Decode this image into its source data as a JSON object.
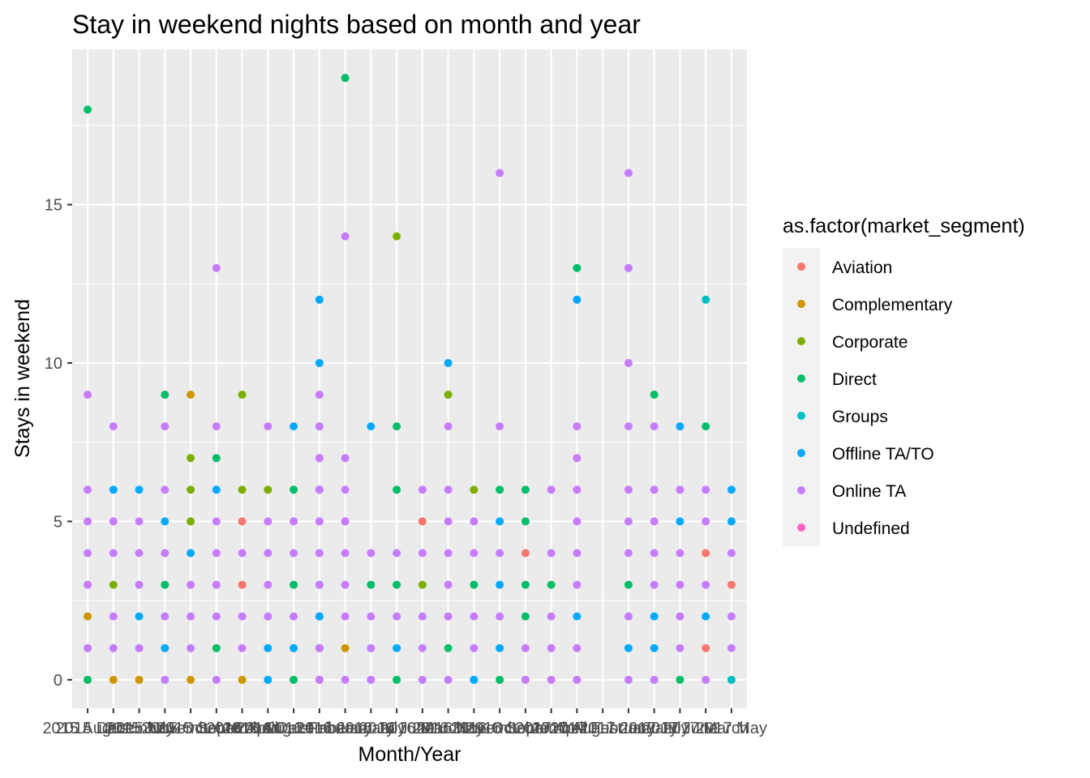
{
  "chart_data": {
    "type": "scatter",
    "title": "Stay in weekend nights based on month and year",
    "xlabel": "Month/Year",
    "ylabel": "Stays in weekend",
    "ylim": [
      -0.9,
      19.9
    ],
    "yticks": [
      0,
      5,
      10,
      15
    ],
    "grid": true,
    "legend": {
      "title": "as.factor(market_segment)",
      "position": "right"
    },
    "categories": [
      "2015 August",
      "2015 December",
      "2015 July",
      "2015 November",
      "2015 October",
      "2015 September",
      "2016 April",
      "2016 August",
      "2016 December",
      "2016 February",
      "2016 January",
      "2016 July",
      "2016 June",
      "2016 March",
      "2016 May",
      "2016 November",
      "2016 October",
      "2016 September",
      "2017 April",
      "2017 August",
      "2017 February",
      "2017 January",
      "2017 July",
      "2017 June",
      "2017 March",
      "2017 May"
    ],
    "series": [
      {
        "name": "Aviation",
        "color": "#F8766D",
        "points": [
          {
            "x": "2016 April",
            "y": 5
          },
          {
            "x": "2016 April",
            "y": 3
          },
          {
            "x": "2016 March",
            "y": 5
          },
          {
            "x": "2016 September",
            "y": 4
          },
          {
            "x": "2017 March",
            "y": 4
          },
          {
            "x": "2017 March",
            "y": 1
          },
          {
            "x": "2017 May",
            "y": 3
          }
        ]
      },
      {
        "name": "Complementary",
        "color": "#CD9600",
        "points": [
          {
            "x": "2015 August",
            "y": 2
          },
          {
            "x": "2015 December",
            "y": 0
          },
          {
            "x": "2015 July",
            "y": 0
          },
          {
            "x": "2015 October",
            "y": 9
          },
          {
            "x": "2015 October",
            "y": 0
          },
          {
            "x": "2016 April",
            "y": 0
          },
          {
            "x": "2016 January",
            "y": 1
          }
        ]
      },
      {
        "name": "Corporate",
        "color": "#7CAE00",
        "points": [
          {
            "x": "2015 December",
            "y": 3
          },
          {
            "x": "2015 October",
            "y": 7
          },
          {
            "x": "2015 October",
            "y": 6
          },
          {
            "x": "2015 October",
            "y": 5
          },
          {
            "x": "2016 April",
            "y": 9
          },
          {
            "x": "2016 April",
            "y": 6
          },
          {
            "x": "2016 August",
            "y": 6
          },
          {
            "x": "2016 February",
            "y": 0
          },
          {
            "x": "2016 June",
            "y": 14
          },
          {
            "x": "2016 March",
            "y": 3
          },
          {
            "x": "2016 May",
            "y": 9
          },
          {
            "x": "2016 November",
            "y": 6
          }
        ]
      },
      {
        "name": "Direct",
        "color": "#00BE67",
        "points": [
          {
            "x": "2015 August",
            "y": 18
          },
          {
            "x": "2015 August",
            "y": 0
          },
          {
            "x": "2015 November",
            "y": 9
          },
          {
            "x": "2015 November",
            "y": 3
          },
          {
            "x": "2015 September",
            "y": 7
          },
          {
            "x": "2015 September",
            "y": 1
          },
          {
            "x": "2016 December",
            "y": 6
          },
          {
            "x": "2016 December",
            "y": 3
          },
          {
            "x": "2016 December",
            "y": 0
          },
          {
            "x": "2016 January",
            "y": 19
          },
          {
            "x": "2016 February",
            "y": 8
          },
          {
            "x": "2016 February",
            "y": 6
          },
          {
            "x": "2016 July",
            "y": 3
          },
          {
            "x": "2016 June",
            "y": 8
          },
          {
            "x": "2016 June",
            "y": 6
          },
          {
            "x": "2016 June",
            "y": 3
          },
          {
            "x": "2016 June",
            "y": 0
          },
          {
            "x": "2016 May",
            "y": 1
          },
          {
            "x": "2016 November",
            "y": 3
          },
          {
            "x": "2016 October",
            "y": 6
          },
          {
            "x": "2016 October",
            "y": 0
          },
          {
            "x": "2016 September",
            "y": 6
          },
          {
            "x": "2016 September",
            "y": 5
          },
          {
            "x": "2016 September",
            "y": 3
          },
          {
            "x": "2016 September",
            "y": 2
          },
          {
            "x": "2017 April",
            "y": 3
          },
          {
            "x": "2017 August",
            "y": 13
          },
          {
            "x": "2017 January",
            "y": 3
          },
          {
            "x": "2017 July",
            "y": 9
          },
          {
            "x": "2017 June",
            "y": 0
          },
          {
            "x": "2017 March",
            "y": 8
          }
        ]
      },
      {
        "name": "Groups",
        "color": "#00BFC4",
        "points": [
          {
            "x": "2017 March",
            "y": 12
          },
          {
            "x": "2017 May",
            "y": 0
          }
        ]
      },
      {
        "name": "Offline TA/TO",
        "color": "#00A9FF",
        "points": [
          {
            "x": "2015 December",
            "y": 6
          },
          {
            "x": "2015 July",
            "y": 6
          },
          {
            "x": "2015 July",
            "y": 2
          },
          {
            "x": "2015 November",
            "y": 5
          },
          {
            "x": "2015 November",
            "y": 1
          },
          {
            "x": "2015 October",
            "y": 4
          },
          {
            "x": "2015 September",
            "y": 6
          },
          {
            "x": "2016 August",
            "y": 1
          },
          {
            "x": "2016 August",
            "y": 0
          },
          {
            "x": "2016 December",
            "y": 8
          },
          {
            "x": "2016 December",
            "y": 1
          },
          {
            "x": "2016 February",
            "y": 3
          },
          {
            "x": "2016 February",
            "y": 2
          },
          {
            "x": "2016 February",
            "y": 12
          },
          {
            "x": "2016 February",
            "y": 10
          },
          {
            "x": "2016 February",
            "y": 2
          },
          {
            "x": "2016 February",
            "y": 1
          },
          {
            "x": "2016 July",
            "y": 8
          },
          {
            "x": "2016 June",
            "y": 1
          },
          {
            "x": "2016 May",
            "y": 10
          },
          {
            "x": "2016 November",
            "y": 0
          },
          {
            "x": "2016 October",
            "y": 5
          },
          {
            "x": "2016 October",
            "y": 3
          },
          {
            "x": "2016 October",
            "y": 1
          },
          {
            "x": "2017 August",
            "y": 12
          },
          {
            "x": "2017 August",
            "y": 2
          },
          {
            "x": "2017 January",
            "y": 1
          },
          {
            "x": "2017 July",
            "y": 2
          },
          {
            "x": "2017 July",
            "y": 1
          },
          {
            "x": "2017 June",
            "y": 8
          },
          {
            "x": "2017 June",
            "y": 5
          },
          {
            "x": "2017 March",
            "y": 2
          },
          {
            "x": "2017 May",
            "y": 6
          },
          {
            "x": "2017 May",
            "y": 5
          }
        ]
      },
      {
        "name": "Online TA",
        "color": "#C77CFF",
        "points": [
          {
            "x": "2015 August",
            "y": 9
          },
          {
            "x": "2015 August",
            "y": 6
          },
          {
            "x": "2015 August",
            "y": 5
          },
          {
            "x": "2015 August",
            "y": 4
          },
          {
            "x": "2015 August",
            "y": 3
          },
          {
            "x": "2015 August",
            "y": 1
          },
          {
            "x": "2015 December",
            "y": 8
          },
          {
            "x": "2015 December",
            "y": 5
          },
          {
            "x": "2015 December",
            "y": 4
          },
          {
            "x": "2015 December",
            "y": 2
          },
          {
            "x": "2015 December",
            "y": 1
          },
          {
            "x": "2015 July",
            "y": 5
          },
          {
            "x": "2015 July",
            "y": 4
          },
          {
            "x": "2015 July",
            "y": 3
          },
          {
            "x": "2015 July",
            "y": 1
          },
          {
            "x": "2015 November",
            "y": 8
          },
          {
            "x": "2015 November",
            "y": 6
          },
          {
            "x": "2015 November",
            "y": 4
          },
          {
            "x": "2015 November",
            "y": 2
          },
          {
            "x": "2015 November",
            "y": 0
          },
          {
            "x": "2015 October",
            "y": 3
          },
          {
            "x": "2015 October",
            "y": 2
          },
          {
            "x": "2015 October",
            "y": 1
          },
          {
            "x": "2015 September",
            "y": 13
          },
          {
            "x": "2015 September",
            "y": 8
          },
          {
            "x": "2015 September",
            "y": 5
          },
          {
            "x": "2015 September",
            "y": 4
          },
          {
            "x": "2015 September",
            "y": 3
          },
          {
            "x": "2015 September",
            "y": 2
          },
          {
            "x": "2015 September",
            "y": 0
          },
          {
            "x": "2016 April",
            "y": 4
          },
          {
            "x": "2016 April",
            "y": 2
          },
          {
            "x": "2016 April",
            "y": 1
          },
          {
            "x": "2016 August",
            "y": 8
          },
          {
            "x": "2016 August",
            "y": 5
          },
          {
            "x": "2016 August",
            "y": 4
          },
          {
            "x": "2016 August",
            "y": 3
          },
          {
            "x": "2016 August",
            "y": 2
          },
          {
            "x": "2016 December",
            "y": 5
          },
          {
            "x": "2016 December",
            "y": 4
          },
          {
            "x": "2016 December",
            "y": 2
          },
          {
            "x": "2016 February",
            "y": 9
          },
          {
            "x": "2016 February",
            "y": 8
          },
          {
            "x": "2016 February",
            "y": 7
          },
          {
            "x": "2016 February",
            "y": 6
          },
          {
            "x": "2016 February",
            "y": 5
          },
          {
            "x": "2016 February",
            "y": 4
          },
          {
            "x": "2016 February",
            "y": 1
          },
          {
            "x": "2016 February",
            "y": 7
          },
          {
            "x": "2016 February",
            "y": 5
          },
          {
            "x": "2016 February",
            "y": 4
          },
          {
            "x": "2016 February",
            "y": 3
          },
          {
            "x": "2016 February",
            "y": 0
          },
          {
            "x": "2016 January",
            "y": 14
          },
          {
            "x": "2016 January",
            "y": 7
          },
          {
            "x": "2016 January",
            "y": 6
          },
          {
            "x": "2016 January",
            "y": 5
          },
          {
            "x": "2016 January",
            "y": 4
          },
          {
            "x": "2016 January",
            "y": 3
          },
          {
            "x": "2016 January",
            "y": 2
          },
          {
            "x": "2016 January",
            "y": 0
          },
          {
            "x": "2016 July",
            "y": 4
          },
          {
            "x": "2016 July",
            "y": 2
          },
          {
            "x": "2016 July",
            "y": 1
          },
          {
            "x": "2016 July",
            "y": 0
          },
          {
            "x": "2016 June",
            "y": 4
          },
          {
            "x": "2016 June",
            "y": 2
          },
          {
            "x": "2016 March",
            "y": 6
          },
          {
            "x": "2016 March",
            "y": 4
          },
          {
            "x": "2016 March",
            "y": 2
          },
          {
            "x": "2016 March",
            "y": 1
          },
          {
            "x": "2016 March",
            "y": 0
          },
          {
            "x": "2016 May",
            "y": 8
          },
          {
            "x": "2016 May",
            "y": 6
          },
          {
            "x": "2016 May",
            "y": 5
          },
          {
            "x": "2016 May",
            "y": 4
          },
          {
            "x": "2016 May",
            "y": 3
          },
          {
            "x": "2016 May",
            "y": 2
          },
          {
            "x": "2016 May",
            "y": 0
          },
          {
            "x": "2016 November",
            "y": 5
          },
          {
            "x": "2016 November",
            "y": 4
          },
          {
            "x": "2016 November",
            "y": 2
          },
          {
            "x": "2016 November",
            "y": 1
          },
          {
            "x": "2016 October",
            "y": 16
          },
          {
            "x": "2016 October",
            "y": 8
          },
          {
            "x": "2016 October",
            "y": 4
          },
          {
            "x": "2016 October",
            "y": 2
          },
          {
            "x": "2016 September",
            "y": 1
          },
          {
            "x": "2016 September",
            "y": 0
          },
          {
            "x": "2017 April",
            "y": 6
          },
          {
            "x": "2017 April",
            "y": 4
          },
          {
            "x": "2017 April",
            "y": 2
          },
          {
            "x": "2017 April",
            "y": 1
          },
          {
            "x": "2017 April",
            "y": 0
          },
          {
            "x": "2017 August",
            "y": 8
          },
          {
            "x": "2017 August",
            "y": 7
          },
          {
            "x": "2017 August",
            "y": 6
          },
          {
            "x": "2017 August",
            "y": 5
          },
          {
            "x": "2017 August",
            "y": 4
          },
          {
            "x": "2017 August",
            "y": 3
          },
          {
            "x": "2017 August",
            "y": 1
          },
          {
            "x": "2017 August",
            "y": 0
          },
          {
            "x": "2017 January",
            "y": 16
          },
          {
            "x": "2017 January",
            "y": 13
          },
          {
            "x": "2017 January",
            "y": 10
          },
          {
            "x": "2017 January",
            "y": 8
          },
          {
            "x": "2017 January",
            "y": 6
          },
          {
            "x": "2017 January",
            "y": 5
          },
          {
            "x": "2017 January",
            "y": 4
          },
          {
            "x": "2017 January",
            "y": 2
          },
          {
            "x": "2017 January",
            "y": 0
          },
          {
            "x": "2017 July",
            "y": 8
          },
          {
            "x": "2017 July",
            "y": 6
          },
          {
            "x": "2017 July",
            "y": 5
          },
          {
            "x": "2017 July",
            "y": 4
          },
          {
            "x": "2017 July",
            "y": 3
          },
          {
            "x": "2017 July",
            "y": 0
          },
          {
            "x": "2017 June",
            "y": 6
          },
          {
            "x": "2017 June",
            "y": 4
          },
          {
            "x": "2017 June",
            "y": 3
          },
          {
            "x": "2017 June",
            "y": 2
          },
          {
            "x": "2017 June",
            "y": 1
          },
          {
            "x": "2017 March",
            "y": 6
          },
          {
            "x": "2017 March",
            "y": 5
          },
          {
            "x": "2017 March",
            "y": 3
          },
          {
            "x": "2017 March",
            "y": 0
          },
          {
            "x": "2017 May",
            "y": 4
          },
          {
            "x": "2017 May",
            "y": 2
          },
          {
            "x": "2017 May",
            "y": 1
          }
        ]
      },
      {
        "name": "Undefined",
        "color": "#FF61C3",
        "points": []
      }
    ]
  }
}
